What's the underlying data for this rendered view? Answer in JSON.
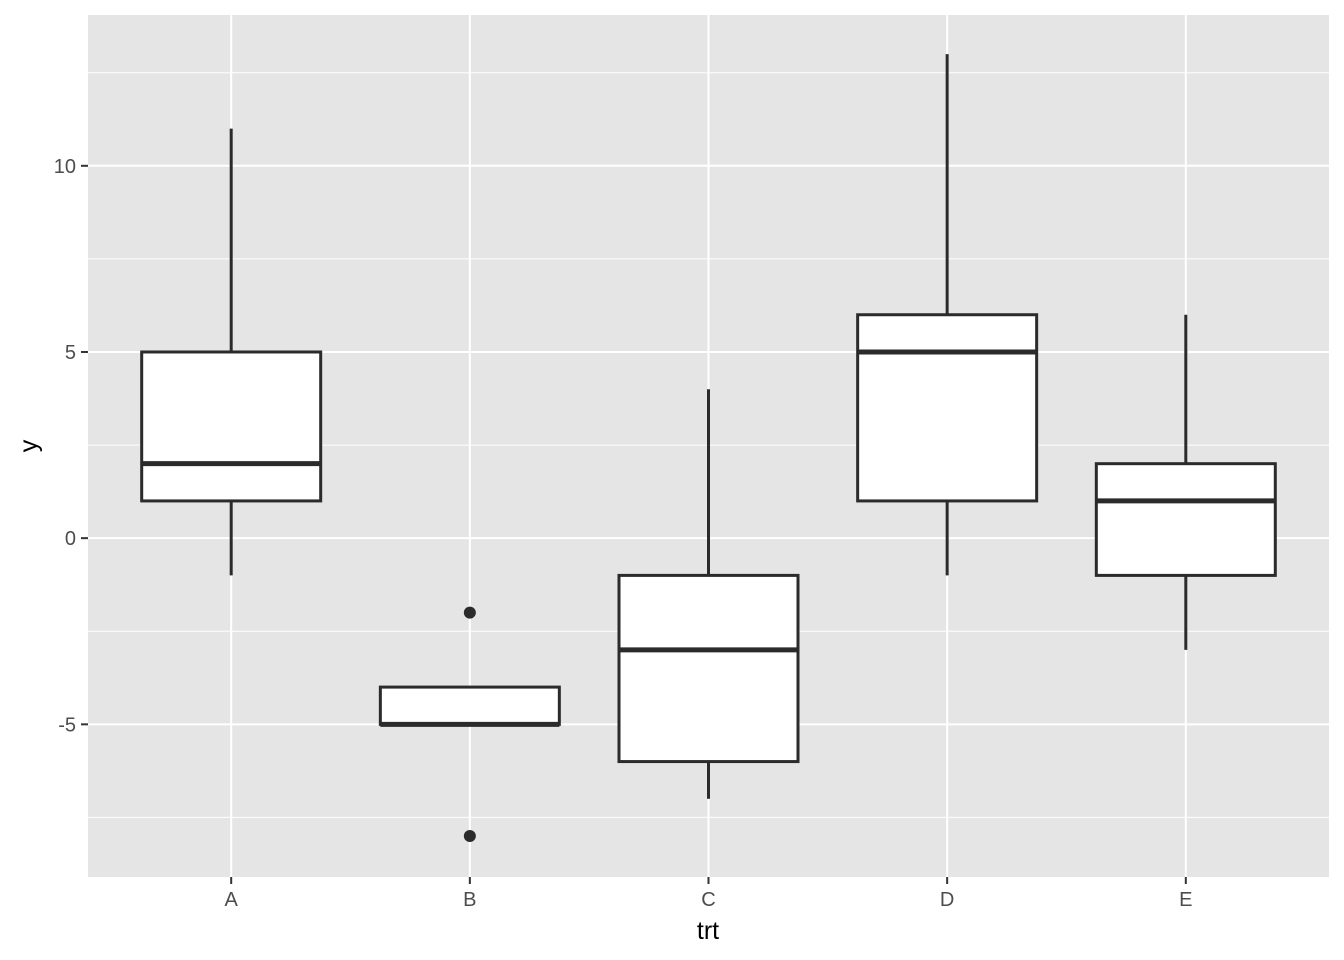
{
  "chart_data": {
    "type": "boxplot",
    "title": "",
    "xlabel": "trt",
    "ylabel": "y",
    "ylim": [
      -9.1,
      14.05
    ],
    "y_ticks": [
      -5,
      0,
      5,
      10
    ],
    "y_tick_labels": [
      "-5",
      "0",
      "5",
      "10"
    ],
    "y_minor_ticks": [
      -7.5,
      -2.5,
      2.5,
      7.5,
      12.5
    ],
    "grid": true,
    "legend": "none",
    "categories": [
      "A",
      "B",
      "C",
      "D",
      "E"
    ],
    "boxes": [
      {
        "category": "A",
        "whisker_low": -1,
        "q1": 1,
        "median": 2,
        "q3": 5,
        "whisker_high": 11,
        "outliers": []
      },
      {
        "category": "B",
        "whisker_low": -5,
        "q1": -5,
        "median": -5,
        "q3": -4,
        "whisker_high": -4,
        "outliers": [
          -2,
          -8
        ]
      },
      {
        "category": "C",
        "whisker_low": -7,
        "q1": -6,
        "median": -3,
        "q3": -1,
        "whisker_high": 4,
        "outliers": []
      },
      {
        "category": "D",
        "whisker_low": -1,
        "q1": 1,
        "median": 5,
        "q3": 6,
        "whisker_high": 13,
        "outliers": []
      },
      {
        "category": "E",
        "whisker_low": -3,
        "q1": -1,
        "median": 1,
        "q3": 2,
        "whisker_high": 6,
        "outliers": []
      }
    ],
    "colors": {
      "panel_background": "#e5e5e5",
      "grid": "#ffffff",
      "box_fill": "#ffffff",
      "box_stroke": "#2b2b2b",
      "tick_text": "#4d4d4d",
      "axis_title": "#000000"
    }
  }
}
